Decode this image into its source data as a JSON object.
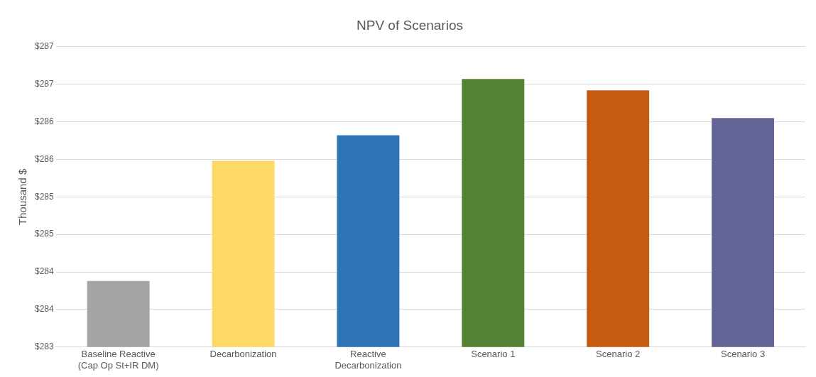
{
  "chart_data": {
    "type": "bar",
    "title": "NPV of Scenarios",
    "ylabel": "Thousand $",
    "categories": [
      "Baseline Reactive (Cap Op St+IR DM)",
      "Decarbonization",
      "Reactive Decarbonization",
      "Scenario 1",
      "Scenario 2",
      "Scenario 3"
    ],
    "values": [
      283.88,
      285.48,
      285.82,
      286.57,
      286.42,
      286.05
    ],
    "colors": [
      "#a5a5a5",
      "#ffd966",
      "#2e75b6",
      "#548235",
      "#c55a11",
      "#636496"
    ],
    "ylim": [
      283,
      287
    ],
    "yticks": [
      {
        "value": 283,
        "label": "$283"
      },
      {
        "value": 283.5,
        "label": "$284"
      },
      {
        "value": 284,
        "label": "$284"
      },
      {
        "value": 284.5,
        "label": "$285"
      },
      {
        "value": 285,
        "label": "$285"
      },
      {
        "value": 285.5,
        "label": "$286"
      },
      {
        "value": 286,
        "label": "$286"
      },
      {
        "value": 286.5,
        "label": "$287"
      },
      {
        "value": 287,
        "label": "$287"
      }
    ],
    "grid": "y",
    "legend": false
  }
}
